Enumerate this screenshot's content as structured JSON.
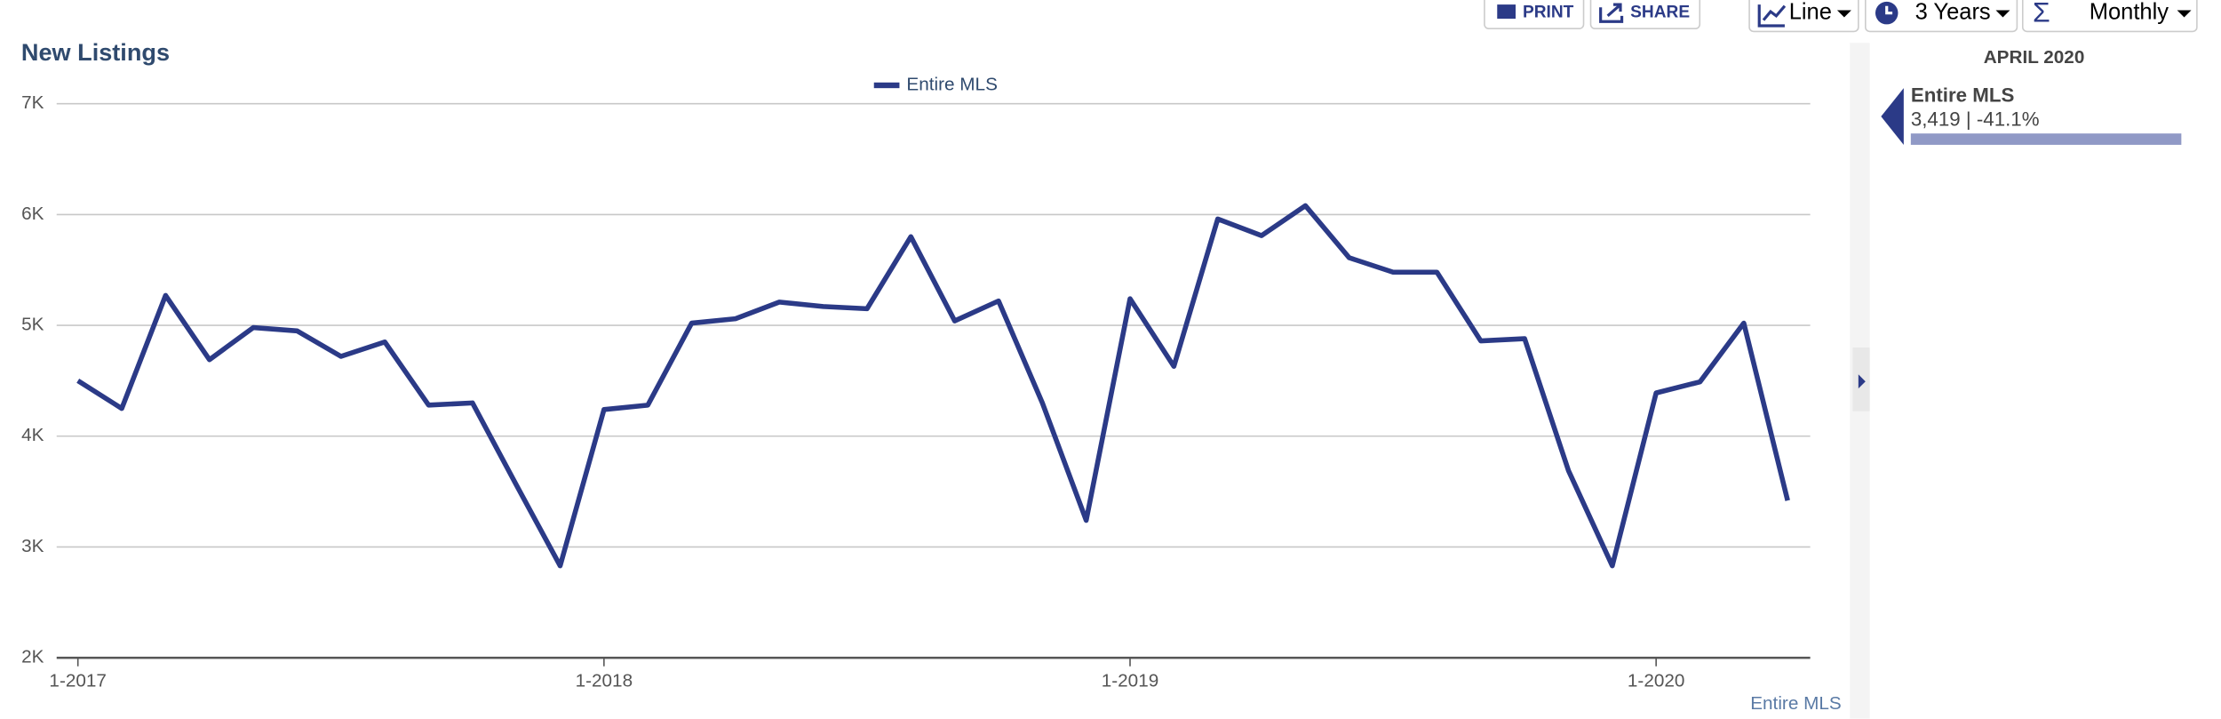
{
  "toolbar": {
    "print": "PRINT",
    "share": "SHARE",
    "chart_type": "Line",
    "range": "3 Years",
    "period": "Monthly"
  },
  "chart_data": {
    "type": "line",
    "title": "New Listings",
    "categories": [
      "1-2017",
      null,
      null,
      null,
      null,
      null,
      null,
      null,
      null,
      null,
      null,
      null,
      "1-2018",
      null,
      null,
      null,
      null,
      null,
      null,
      null,
      null,
      null,
      null,
      null,
      "1-2019",
      null,
      null,
      null,
      null,
      null,
      null,
      null,
      null,
      null,
      null,
      null,
      "1-2020",
      null,
      null,
      null
    ],
    "series": [
      {
        "name": "Entire MLS",
        "color": "#2b3a87",
        "values": [
          4500,
          4250,
          5270,
          4690,
          4980,
          4950,
          4720,
          4850,
          4280,
          4300,
          3560,
          2830,
          4240,
          4280,
          5020,
          5060,
          5210,
          5170,
          5150,
          5800,
          5040,
          5220,
          4300,
          3240,
          5240,
          4630,
          5960,
          5810,
          6080,
          5610,
          5480,
          5480,
          4860,
          4880,
          3690,
          2830,
          4390,
          4490,
          5020,
          3419
        ]
      }
    ],
    "ylim": [
      2000,
      7000
    ],
    "yticks": [
      {
        "value": 2000,
        "label": "2K"
      },
      {
        "value": 3000,
        "label": "3K"
      },
      {
        "value": 4000,
        "label": "4K"
      },
      {
        "value": 5000,
        "label": "5K"
      },
      {
        "value": 6000,
        "label": "6K"
      },
      {
        "value": 7000,
        "label": "7K"
      }
    ],
    "grid": true,
    "legend": "top",
    "source_label": "Entire MLS"
  },
  "side_panel": {
    "period": "APRIL 2020",
    "name": "Entire MLS",
    "value": "3,419 | -41.1%"
  }
}
